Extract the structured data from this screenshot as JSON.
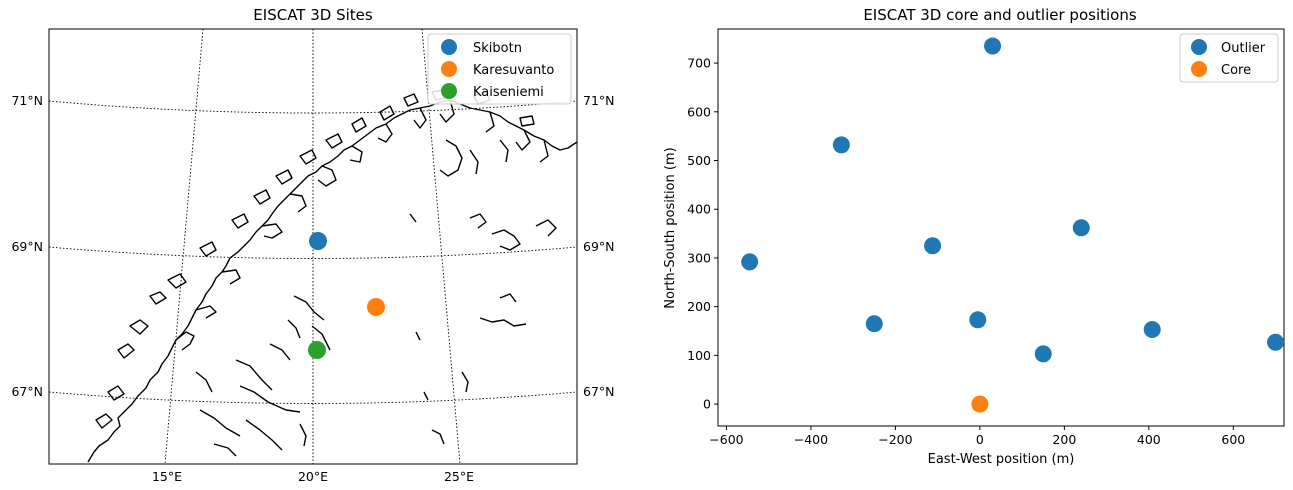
{
  "chart_data": [
    {
      "type": "map",
      "title": "EISCAT 3D Sites",
      "latitude_labels": [
        "71°N",
        "69°N",
        "67°N"
      ],
      "longitude_labels": [
        "15°E",
        "20°E",
        "25°E"
      ],
      "grid": true,
      "legend": "top-right",
      "series": [
        {
          "name": "Skibotn",
          "lon": 20.26,
          "lat": 69.35,
          "color": "#1f77b4"
        },
        {
          "name": "Karesuvanto",
          "lon": 22.48,
          "lat": 68.44,
          "color": "#ff7f0e"
        },
        {
          "name": "Kaiseniemi",
          "lon": 20.4,
          "lat": 67.86,
          "color": "#2ca02c"
        }
      ]
    },
    {
      "type": "scatter",
      "title": "EISCAT 3D core and outlier positions",
      "xlabel": "East-West position (m)",
      "ylabel": "North-South position (m)",
      "xlim": [
        -620,
        720
      ],
      "ylim": [
        -45,
        770
      ],
      "xticks": [
        -600,
        -400,
        -200,
        0,
        200,
        400,
        600
      ],
      "yticks": [
        0,
        100,
        200,
        300,
        400,
        500,
        600,
        700
      ],
      "xtick_labels": [
        "−600",
        "−400",
        "−200",
        "0",
        "200",
        "400",
        "600"
      ],
      "ytick_labels": [
        "0",
        "100",
        "200",
        "300",
        "400",
        "500",
        "600",
        "700"
      ],
      "legend": "top-right",
      "series": [
        {
          "name": "Outlier",
          "color": "#1f77b4",
          "points": [
            [
              30,
              735
            ],
            [
              -328,
              532
            ],
            [
              240,
              362
            ],
            [
              -112,
              325
            ],
            [
              -545,
              292
            ],
            [
              -250,
              165
            ],
            [
              -5,
              173
            ],
            [
              408,
              153
            ],
            [
              150,
              103
            ],
            [
              700,
              127
            ]
          ]
        },
        {
          "name": "Core",
          "color": "#ff7f0e",
          "points": [
            [
              0,
              0
            ]
          ]
        }
      ]
    }
  ]
}
